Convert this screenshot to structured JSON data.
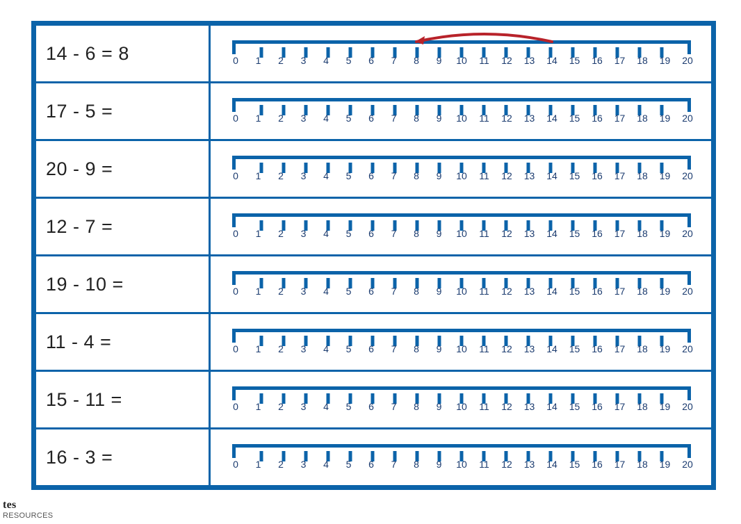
{
  "numberline": {
    "min": 0,
    "max": 20,
    "tick_step": 1,
    "line_color": "#0b63a9",
    "line_width": 5,
    "tick_length": 15,
    "label_fontsize": 14,
    "label_color": "#1b3b6f"
  },
  "arc": {
    "color": "#b8232a",
    "stroke_width": 4
  },
  "colors": {
    "border": "#0b63a9",
    "text": "#222222",
    "background": "#ffffff"
  },
  "rows": [
    {
      "equation": "14 - 6 = 8",
      "arc_from": 14,
      "arc_to": 8
    },
    {
      "equation": "17 - 5 ="
    },
    {
      "equation": "20 - 9 ="
    },
    {
      "equation": "12 - 7 ="
    },
    {
      "equation": "19 - 10 ="
    },
    {
      "equation": "11 - 4 ="
    },
    {
      "equation": "15 - 11 ="
    },
    {
      "equation": "16 - 3 ="
    }
  ],
  "footer": {
    "brand_big": "tes",
    "brand_small": "RESOURCES"
  }
}
